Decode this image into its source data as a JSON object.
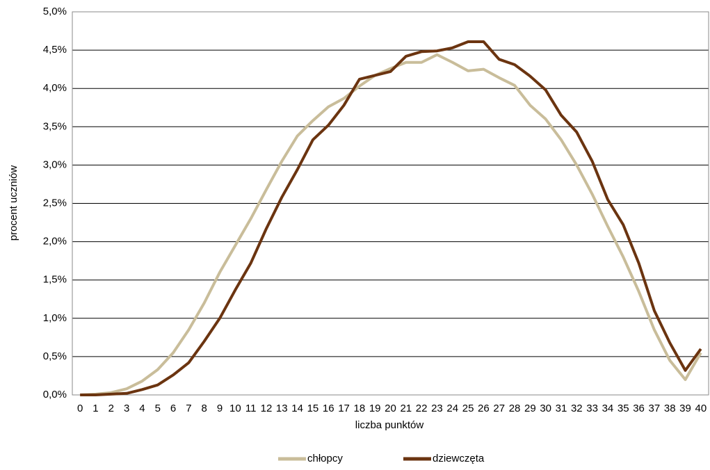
{
  "chart_data": {
    "type": "line",
    "x_label": "liczba punktów",
    "y_label": "procent uczniów",
    "categories": [
      "0",
      "1",
      "2",
      "3",
      "4",
      "5",
      "6",
      "7",
      "8",
      "9",
      "10",
      "11",
      "12",
      "13",
      "14",
      "15",
      "16",
      "17",
      "18",
      "19",
      "20",
      "21",
      "22",
      "23",
      "24",
      "25",
      "26",
      "27",
      "28",
      "29",
      "30",
      "31",
      "32",
      "33",
      "34",
      "35",
      "36",
      "37",
      "38",
      "39",
      "40"
    ],
    "series": [
      {
        "name": "chłopcy",
        "color": "#c9bd9a",
        "values": [
          0,
          0.01,
          0.03,
          0.08,
          0.18,
          0.33,
          0.55,
          0.85,
          1.2,
          1.6,
          1.95,
          2.3,
          2.68,
          3.05,
          3.38,
          3.58,
          3.76,
          3.87,
          4.03,
          4.17,
          4.26,
          4.34,
          4.34,
          4.44,
          4.34,
          4.23,
          4.25,
          4.14,
          4.04,
          3.78,
          3.6,
          3.33,
          3.0,
          2.62,
          2.2,
          1.8,
          1.35,
          0.85,
          0.45,
          0.2,
          0.55
        ]
      },
      {
        "name": "dziewczęta",
        "color": "#6b3410",
        "values": [
          0,
          0,
          0.01,
          0.02,
          0.07,
          0.13,
          0.26,
          0.42,
          0.7,
          1.0,
          1.37,
          1.72,
          2.17,
          2.58,
          2.94,
          3.33,
          3.52,
          3.78,
          4.12,
          4.17,
          4.22,
          4.42,
          4.48,
          4.49,
          4.53,
          4.61,
          4.61,
          4.38,
          4.31,
          4.16,
          3.98,
          3.65,
          3.43,
          3.05,
          2.55,
          2.22,
          1.72,
          1.1,
          0.68,
          0.32,
          0.6
        ]
      }
    ],
    "ylim": [
      0,
      5
    ],
    "yticks": [
      {
        "value": 0,
        "label": "0,0%"
      },
      {
        "value": 0.5,
        "label": "0,5%"
      },
      {
        "value": 1,
        "label": "1,0%"
      },
      {
        "value": 1.5,
        "label": "1,5%"
      },
      {
        "value": 2,
        "label": "2,0%"
      },
      {
        "value": 2.5,
        "label": "2,5%"
      },
      {
        "value": 3,
        "label": "3,0%"
      },
      {
        "value": 3.5,
        "label": "3,5%"
      },
      {
        "value": 4,
        "label": "4,0%"
      },
      {
        "value": 4.5,
        "label": "4,5%"
      },
      {
        "value": 5,
        "label": "5,0%"
      }
    ],
    "grid": true,
    "legend": "bottom"
  }
}
